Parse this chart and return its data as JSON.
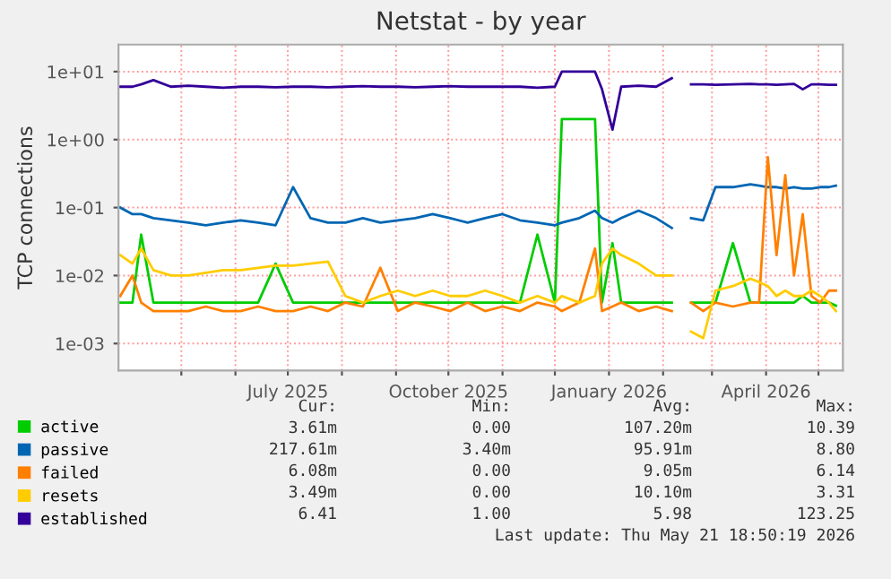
{
  "chart_data": {
    "type": "line",
    "title": "Netstat - by year",
    "ylabel": "TCP connections",
    "log": "y",
    "grid": true,
    "legend": "bottom left",
    "marker": "none",
    "line_style": "solid",
    "ylim": [
      0.0004,
      25
    ],
    "yticks": [
      {
        "value": 0.001,
        "label": "1e-03"
      },
      {
        "value": 0.01,
        "label": "1e-02"
      },
      {
        "value": 0.1,
        "label": "1e-01"
      },
      {
        "value": 1,
        "label": "1e+00"
      },
      {
        "value": 10,
        "label": "1e+01"
      }
    ],
    "xlim": [
      "2025-03-26",
      "2026-05-15"
    ],
    "xticks": [
      {
        "value": "2025-05-01",
        "label": null
      },
      {
        "value": "2025-06-01",
        "label": null
      },
      {
        "value": "2025-07-01",
        "label": "July 2025"
      },
      {
        "value": "2025-08-01",
        "label": null
      },
      {
        "value": "2025-09-01",
        "label": null
      },
      {
        "value": "2025-10-01",
        "label": "October 2025"
      },
      {
        "value": "2025-11-01",
        "label": null
      },
      {
        "value": "2025-12-01",
        "label": null
      },
      {
        "value": "2026-01-01",
        "label": "January 2026"
      },
      {
        "value": "2026-02-01",
        "label": null
      },
      {
        "value": "2026-03-01",
        "label": null
      },
      {
        "value": "2026-04-01",
        "label": "April 2026"
      },
      {
        "value": "2026-05-01",
        "label": null
      }
    ],
    "x": [
      "2025-03-27",
      "2025-04-03",
      "2025-04-08",
      "2025-04-15",
      "2025-04-25",
      "2025-05-05",
      "2025-05-15",
      "2025-05-25",
      "2025-06-04",
      "2025-06-14",
      "2025-06-24",
      "2025-07-04",
      "2025-07-14",
      "2025-07-24",
      "2025-08-03",
      "2025-08-13",
      "2025-08-23",
      "2025-09-02",
      "2025-09-12",
      "2025-09-22",
      "2025-10-02",
      "2025-10-12",
      "2025-10-22",
      "2025-11-01",
      "2025-11-11",
      "2025-11-21",
      "2025-12-01",
      "2025-12-05",
      "2025-12-15",
      "2025-12-24",
      "2025-12-28",
      "2026-01-03",
      "2026-01-08",
      "2026-01-18",
      "2026-01-28",
      "2026-02-06",
      "2026-02-11",
      "2026-02-17",
      "2026-02-24",
      "2026-03-03",
      "2026-03-13",
      "2026-03-23",
      "2026-03-28",
      "2026-04-02",
      "2026-04-07",
      "2026-04-12",
      "2026-04-17",
      "2026-04-22",
      "2026-04-27",
      "2026-05-02",
      "2026-05-07",
      "2026-05-11"
    ],
    "series": [
      {
        "name": "active",
        "color": "#00cc00",
        "values": [
          0.004,
          0.004,
          0.04,
          0.004,
          0.004,
          0.004,
          0.004,
          0.004,
          0.004,
          0.004,
          0.015,
          0.004,
          0.004,
          0.004,
          0.004,
          0.004,
          0.004,
          0.004,
          0.004,
          0.004,
          0.004,
          0.004,
          0.004,
          0.004,
          0.004,
          0.04,
          0.004,
          2,
          2,
          2,
          0.004,
          0.03,
          0.004,
          0.004,
          0.004,
          0.004,
          null,
          0.004,
          0.004,
          0.004,
          0.03,
          0.004,
          0.004,
          0.004,
          0.004,
          0.004,
          0.004,
          0.005,
          0.004,
          0.004,
          0.004,
          0.0036
        ]
      },
      {
        "name": "passive",
        "color": "#0066b3",
        "values": [
          0.1,
          0.08,
          0.08,
          0.07,
          0.065,
          0.06,
          0.055,
          0.06,
          0.065,
          0.06,
          0.055,
          0.2,
          0.07,
          0.06,
          0.06,
          0.07,
          0.06,
          0.065,
          0.07,
          0.08,
          0.07,
          0.06,
          0.07,
          0.08,
          0.065,
          0.06,
          0.055,
          0.06,
          0.07,
          0.09,
          0.07,
          0.06,
          0.07,
          0.09,
          0.07,
          0.05,
          null,
          0.07,
          0.065,
          0.2,
          0.2,
          0.22,
          0.21,
          0.2,
          0.2,
          0.19,
          0.2,
          0.19,
          0.19,
          0.2,
          0.2,
          0.21
        ]
      },
      {
        "name": "failed",
        "color": "#ff8000",
        "values": [
          0.005,
          0.01,
          0.004,
          0.003,
          0.003,
          0.003,
          0.0035,
          0.003,
          0.003,
          0.0035,
          0.003,
          0.003,
          0.0035,
          0.003,
          0.004,
          0.0035,
          0.013,
          0.003,
          0.004,
          0.0035,
          0.003,
          0.004,
          0.003,
          0.0035,
          0.003,
          0.004,
          0.0035,
          0.003,
          0.004,
          0.025,
          0.003,
          0.0035,
          0.004,
          0.003,
          0.0035,
          0.003,
          null,
          0.004,
          0.003,
          0.004,
          0.0035,
          0.004,
          0.004,
          0.55,
          0.02,
          0.3,
          0.01,
          0.08,
          0.005,
          0.004,
          0.006,
          0.006
        ]
      },
      {
        "name": "resets",
        "color": "#ffcc00",
        "values": [
          0.02,
          0.015,
          0.025,
          0.012,
          0.01,
          0.01,
          0.011,
          0.012,
          0.012,
          0.013,
          0.014,
          0.014,
          0.015,
          0.016,
          0.005,
          0.004,
          0.005,
          0.006,
          0.005,
          0.006,
          0.005,
          0.005,
          0.006,
          0.005,
          0.004,
          0.005,
          0.004,
          0.005,
          0.004,
          0.005,
          0.015,
          0.025,
          0.02,
          0.015,
          0.01,
          0.01,
          null,
          0.0015,
          0.0012,
          0.006,
          0.007,
          0.009,
          0.008,
          0.007,
          0.005,
          0.006,
          0.005,
          0.005,
          0.006,
          0.005,
          0.004,
          0.003
        ]
      },
      {
        "name": "established",
        "color": "#330099",
        "values": [
          6,
          6,
          6.5,
          7.5,
          6,
          6.2,
          6,
          5.8,
          6,
          6,
          5.9,
          6,
          6,
          5.9,
          6,
          6.1,
          6,
          6,
          5.9,
          6,
          6.1,
          6,
          6,
          6,
          6,
          5.8,
          6,
          10,
          10,
          10,
          5.5,
          1.4,
          6,
          6.2,
          6,
          8,
          null,
          6.5,
          6.5,
          6.4,
          6.5,
          6.6,
          6.5,
          6.5,
          6.4,
          6.5,
          6.6,
          5.5,
          6.5,
          6.5,
          6.4,
          6.41
        ]
      }
    ],
    "annotations": [
      "Cur:",
      "Min:",
      "Avg:",
      "Max:",
      "3.61m",
      "0.00",
      "107.20m",
      "10.39",
      "217.61m",
      "3.40m",
      "95.91m",
      "8.80",
      "6.08m",
      "0.00",
      "9.05m",
      "6.14",
      "3.49m",
      "0.00",
      "10.10m",
      "3.31",
      "6.41",
      "1.00",
      "5.98",
      "123.25",
      "Last update: Thu May 21 18:50:19 2026"
    ]
  }
}
